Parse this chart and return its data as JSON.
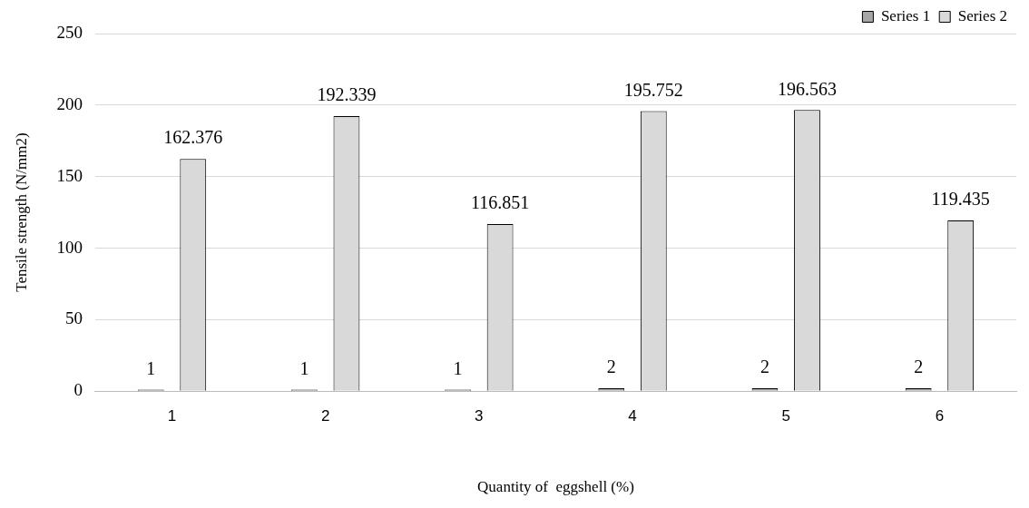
{
  "chart_data": {
    "type": "bar",
    "xlabel": "Quantity of  eggshell (%)",
    "ylabel": "Tensile strength (N/mm2)",
    "categories": [
      "1",
      "2",
      "3",
      "4",
      "5",
      "6"
    ],
    "series": [
      {
        "name": "Series 1",
        "color": "#a6a6a6",
        "values": [
          1,
          1,
          1,
          2,
          2,
          2
        ]
      },
      {
        "name": "Series 2",
        "color": "#d9d9d9",
        "values": [
          162.376,
          192.339,
          116.851,
          195.752,
          196.563,
          119.435
        ]
      }
    ],
    "ylim": [
      0,
      250
    ],
    "yticks": [
      0,
      50,
      100,
      150,
      200,
      250
    ],
    "grid": "y",
    "legend": "top right",
    "data_labels": true
  }
}
